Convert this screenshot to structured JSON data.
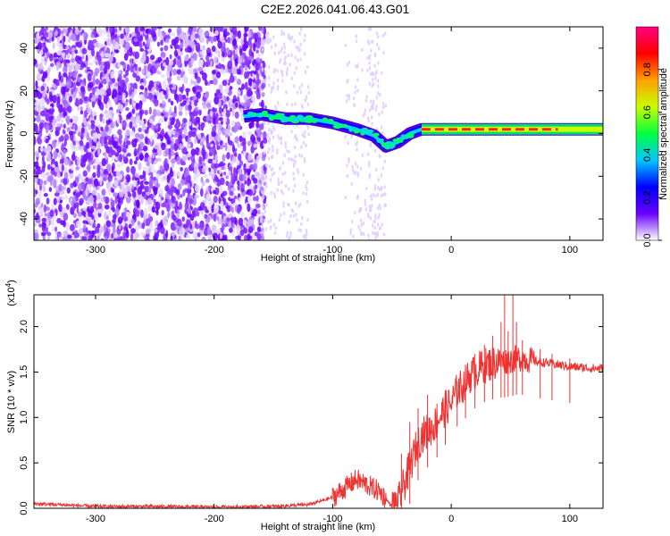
{
  "title": "C2E2.2026.041.06.43.G01",
  "chart_data": [
    {
      "type": "heatmap",
      "name": "spectrogram",
      "xlabel": "Height of straight line (km)",
      "ylabel": "Frequency (Hz)",
      "xlim": [
        -352,
        128
      ],
      "ylim": [
        -50,
        50
      ],
      "xticks": [
        -300,
        -200,
        -100,
        0,
        100
      ],
      "yticks": [
        -40,
        -20,
        0,
        20,
        40
      ],
      "colorbar": {
        "label": "Normalized spectral amplitude",
        "range": [
          0,
          1
        ],
        "ticks": [
          "0.0",
          "0.2",
          "0.4",
          "0.6",
          "0.8"
        ],
        "stops": [
          "#ffffff",
          "#6a00ff",
          "#0000ff",
          "#00c8ff",
          "#00ff40",
          "#c8ff00",
          "#ffa000",
          "#ff0000",
          "#ff007f"
        ]
      },
      "signal_track": {
        "x": [
          -175,
          -160,
          -140,
          -120,
          -100,
          -80,
          -65,
          -55,
          -45,
          -35,
          -25,
          -15,
          0,
          20,
          50,
          80,
          100,
          128
        ],
        "y": [
          8,
          9,
          7,
          7,
          5,
          2,
          -1,
          -6,
          -4,
          0,
          2,
          2,
          2,
          2,
          2,
          2,
          2,
          2
        ]
      }
    },
    {
      "type": "line",
      "name": "snr",
      "xlabel": "Height of straight line (km)",
      "ylabel": "SNR (10 * v/v)",
      "exponent_label": "(x10",
      "exponent": "4",
      "exponent_suffix": ")",
      "xlim": [
        -352,
        128
      ],
      "ylim": [
        0,
        2.35
      ],
      "xticks": [
        -300,
        -200,
        -100,
        0,
        100
      ],
      "yticks": [
        "0.0",
        "0.5",
        "1.0",
        "1.5",
        "2.0"
      ],
      "color": "#ee3333",
      "series": {
        "x": [
          -352,
          -330,
          -300,
          -250,
          -200,
          -150,
          -120,
          -100,
          -90,
          -80,
          -70,
          -60,
          -50,
          -45,
          -40,
          -35,
          -30,
          -25,
          -20,
          -15,
          -10,
          -5,
          0,
          5,
          10,
          15,
          20,
          25,
          30,
          35,
          40,
          45,
          50,
          55,
          60,
          70,
          80,
          90,
          100,
          110,
          120,
          128
        ],
        "y": [
          0.05,
          0.04,
          0.02,
          0.02,
          0.01,
          0.02,
          0.04,
          0.12,
          0.22,
          0.32,
          0.25,
          0.18,
          0.02,
          0.05,
          0.25,
          0.45,
          0.65,
          0.8,
          0.85,
          0.9,
          1.0,
          1.1,
          1.15,
          1.3,
          1.35,
          1.45,
          1.5,
          1.55,
          1.58,
          1.6,
          1.62,
          1.62,
          1.63,
          1.65,
          1.65,
          1.62,
          1.6,
          1.58,
          1.56,
          1.55,
          1.54,
          1.54
        ]
      },
      "spikes": {
        "x": [
          -48,
          -42,
          -35,
          -28,
          -20,
          -12,
          -5,
          5,
          12,
          20,
          28,
          35,
          42,
          45,
          48,
          52,
          55,
          60,
          75,
          85,
          100
        ],
        "y": [
          0.18,
          0.6,
          0.95,
          1.1,
          1.25,
          1.15,
          1.3,
          1.4,
          1.55,
          1.7,
          1.8,
          1.9,
          2.05,
          2.35,
          1.95,
          2.35,
          2.05,
          1.85,
          1.75,
          1.7,
          1.65
        ]
      }
    }
  ]
}
